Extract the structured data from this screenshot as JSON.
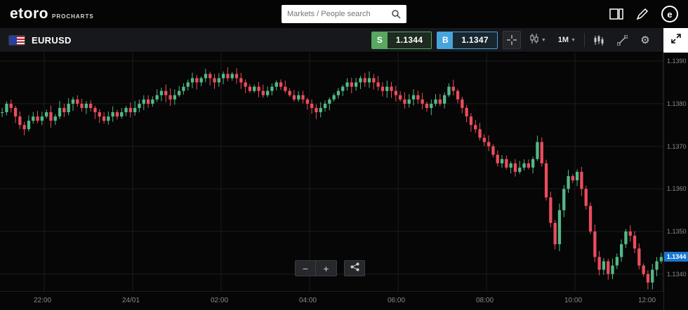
{
  "topbar": {
    "logo_text": "etoro",
    "logo_sub": "PROCHARTS",
    "search": {
      "placeholder": "Markets / People search"
    },
    "icons": [
      "layout-grid-icon",
      "pencil-edit-icon",
      "etoro-logo-icon"
    ]
  },
  "toolbar": {
    "symbol": "EURUSD",
    "sell": {
      "label": "S",
      "price": "1.1344"
    },
    "buy": {
      "label": "B",
      "price": "1.1347"
    },
    "interval": "1M",
    "icons": [
      "crosshair-icon",
      "candle-style-icon",
      "indicators-icon",
      "trendline-icon",
      "gear-icon",
      "expand-icon"
    ]
  },
  "zoom": {
    "out": "−",
    "in": "+"
  },
  "colors": {
    "up": "#53b987",
    "down": "#eb4d5c",
    "grid": "#1c1c1c",
    "price_tag_blue": "#1976d2",
    "sell_green": "#58a860",
    "buy_blue": "#47a5dd"
  },
  "chart_data": {
    "type": "candlestick",
    "symbol": "EURUSD",
    "interval": "1M",
    "x_labels": [
      {
        "label": "22:00",
        "index": 10
      },
      {
        "label": "24/01",
        "index": 30
      },
      {
        "label": "02:00",
        "index": 50
      },
      {
        "label": "04:00",
        "index": 70
      },
      {
        "label": "06:00",
        "index": 90
      },
      {
        "label": "08:00",
        "index": 110
      },
      {
        "label": "10:00",
        "index": 130
      },
      {
        "label": "12:00",
        "index": 150
      }
    ],
    "y_ticks": [
      1.139,
      1.138,
      1.137,
      1.136,
      1.135,
      1.134
    ],
    "y_min": 1.1336,
    "y_max": 1.1392,
    "last_price": "1.1344",
    "open_price": 1.1378,
    "closes": [
      1.1378,
      1.138,
      1.1379,
      1.1377,
      1.1375,
      1.1374,
      1.1376,
      1.1377,
      1.1376,
      1.1377,
      1.1378,
      1.1376,
      1.1377,
      1.1379,
      1.1378,
      1.138,
      1.1381,
      1.138,
      1.1379,
      1.138,
      1.1379,
      1.1378,
      1.1377,
      1.1376,
      1.1377,
      1.1378,
      1.1377,
      1.1378,
      1.1379,
      1.1378,
      1.1379,
      1.138,
      1.1381,
      1.138,
      1.1381,
      1.1382,
      1.1383,
      1.1382,
      1.1381,
      1.1382,
      1.1383,
      1.1384,
      1.1385,
      1.1386,
      1.1385,
      1.1386,
      1.1387,
      1.1386,
      1.1385,
      1.1386,
      1.1387,
      1.1386,
      1.1387,
      1.1386,
      1.1385,
      1.1384,
      1.1383,
      1.1384,
      1.1383,
      1.1382,
      1.1383,
      1.1384,
      1.1385,
      1.1384,
      1.1383,
      1.1382,
      1.1381,
      1.1382,
      1.1381,
      1.138,
      1.1379,
      1.1378,
      1.1379,
      1.138,
      1.1381,
      1.1382,
      1.1383,
      1.1384,
      1.1385,
      1.1384,
      1.1385,
      1.1386,
      1.1385,
      1.1386,
      1.1385,
      1.1384,
      1.1383,
      1.1384,
      1.1383,
      1.1382,
      1.1381,
      1.138,
      1.1381,
      1.1382,
      1.1381,
      1.138,
      1.1379,
      1.138,
      1.1381,
      1.138,
      1.1382,
      1.1384,
      1.1383,
      1.1381,
      1.1379,
      1.1377,
      1.1375,
      1.1374,
      1.1372,
      1.1371,
      1.137,
      1.1368,
      1.1366,
      1.1367,
      1.1365,
      1.1366,
      1.1364,
      1.1365,
      1.1366,
      1.1365,
      1.1367,
      1.1371,
      1.1366,
      1.1358,
      1.1352,
      1.1347,
      1.1355,
      1.136,
      1.1363,
      1.1362,
      1.1364,
      1.136,
      1.1356,
      1.135,
      1.1344,
      1.1341,
      1.1343,
      1.134,
      1.1342,
      1.1344,
      1.1347,
      1.135,
      1.1349,
      1.1346,
      1.1342,
      1.134,
      1.1338,
      1.1341,
      1.1343,
      1.1344
    ]
  }
}
